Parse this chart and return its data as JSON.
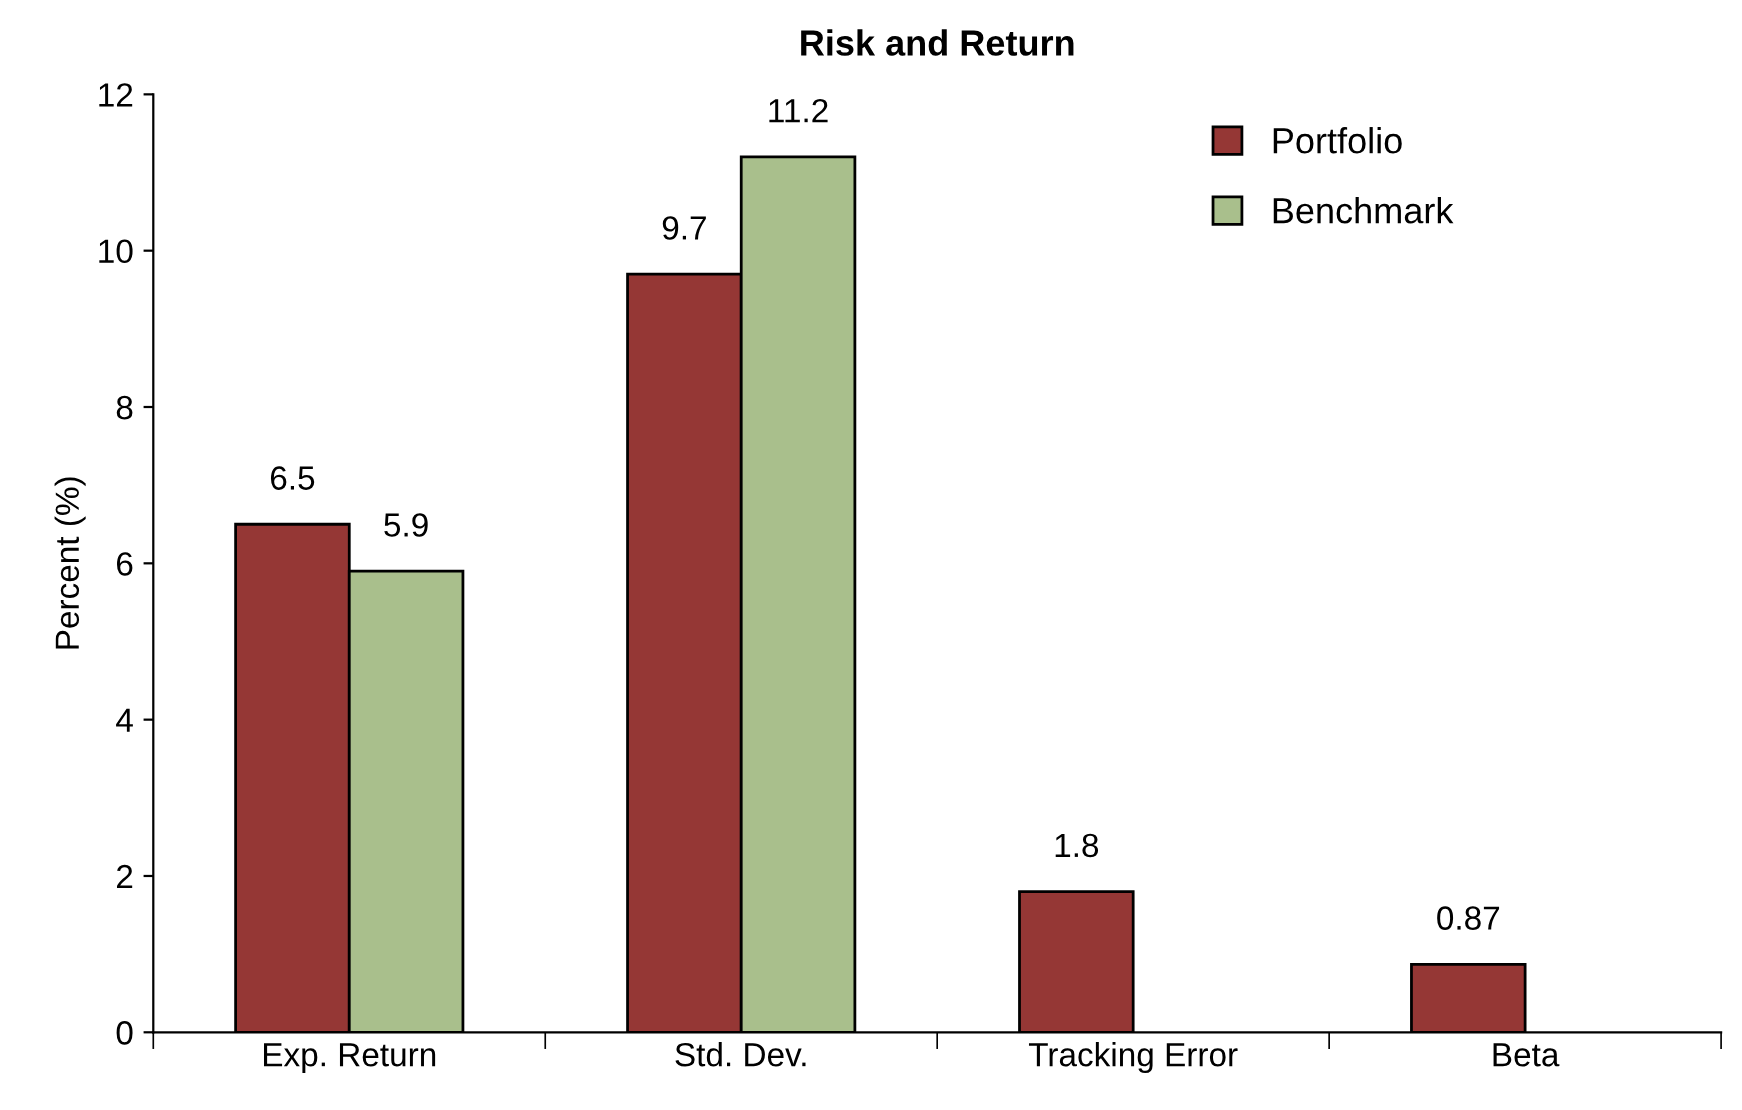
{
  "chart_data": {
    "type": "bar",
    "title": "Risk and Return",
    "ylabel": "Percent (%)",
    "categories": [
      "Exp. Return",
      "Std. Dev.",
      "Tracking Error",
      "Beta"
    ],
    "series": [
      {
        "name": "Portfolio",
        "color": "#953735",
        "values": [
          6.5,
          9.7,
          1.8,
          0.87
        ]
      },
      {
        "name": "Benchmark",
        "color": "#a9bf8c",
        "values": [
          5.9,
          11.2,
          null,
          null
        ]
      }
    ],
    "ylim": [
      0,
      12
    ],
    "yticks": [
      0,
      2,
      4,
      6,
      8,
      10,
      12
    ],
    "grid": false,
    "legend": "top right",
    "data_labels": true
  }
}
